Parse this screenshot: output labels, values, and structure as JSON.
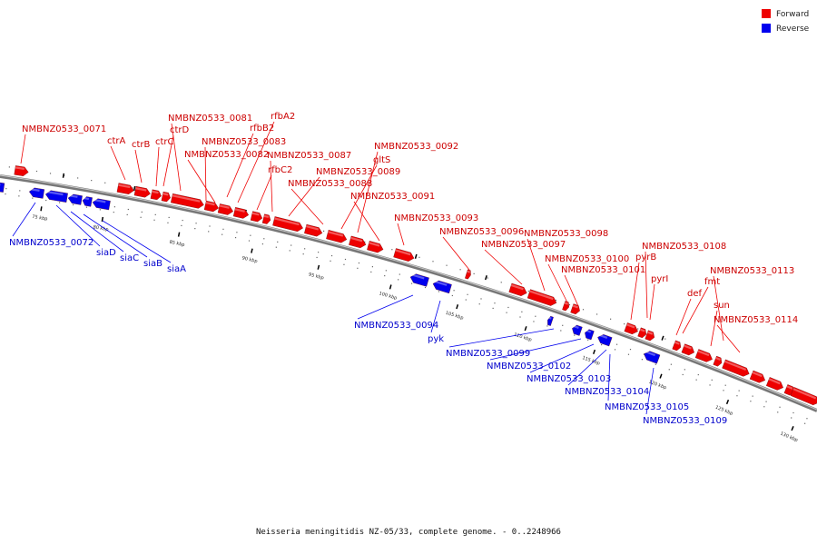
{
  "caption": "Neisseria meningitidis NZ-05/33, complete genome. - 0..2248966",
  "legend": [
    {
      "label": "Forward",
      "color": "#ee0000"
    },
    {
      "label": "Reverse",
      "color": "#0000ee"
    }
  ],
  "colors": {
    "forward": "#ee0000",
    "reverse": "#0000ee",
    "forward_label": "#cc0000",
    "reverse_label": "#0000cc",
    "backbone": "#888888"
  },
  "scale_ticks": [
    "75 kbp",
    "80 kbp",
    "85 kbp",
    "90 kbp",
    "95 kbp",
    "100 kbp",
    "105 kbp",
    "110 kbp",
    "115 kbp",
    "120 kbp",
    "125 kbp",
    "130 kbp"
  ],
  "forward_labels": [
    "NMBNZ0533_0071",
    "ctrA",
    "ctrB",
    "ctrC",
    "ctrD",
    "NMBNZ0533_0081",
    "rfbB2",
    "rfbA2",
    "NMBNZ0533_0083",
    "NMBNZ0533_0082",
    "rfbC2",
    "NMBNZ0533_0087",
    "NMBNZ0533_0089",
    "NMBNZ0533_0088",
    "gltS",
    "NMBNZ0533_0092",
    "NMBNZ0533_0091",
    "NMBNZ0533_0093",
    "NMBNZ0533_0096",
    "NMBNZ0533_0098",
    "NMBNZ0533_0097",
    "NMBNZ0533_0100",
    "NMBNZ0533_0101",
    "pyrB",
    "NMBNZ0533_0108",
    "pyrI",
    "fmt",
    "def",
    "NMBNZ0533_0113",
    "sun",
    "NMBNZ0533_0114"
  ],
  "reverse_labels": [
    "NMBNZ0533_0072",
    "siaD",
    "siaC",
    "siaB",
    "siaA",
    "NMBNZ0533_0094",
    "pyk",
    "NMBNZ0533_0099",
    "NMBNZ0533_0102",
    "NMBNZ0533_0103",
    "NMBNZ0533_0104",
    "NMBNZ0533_0105",
    "NMBNZ0533_0109"
  ]
}
